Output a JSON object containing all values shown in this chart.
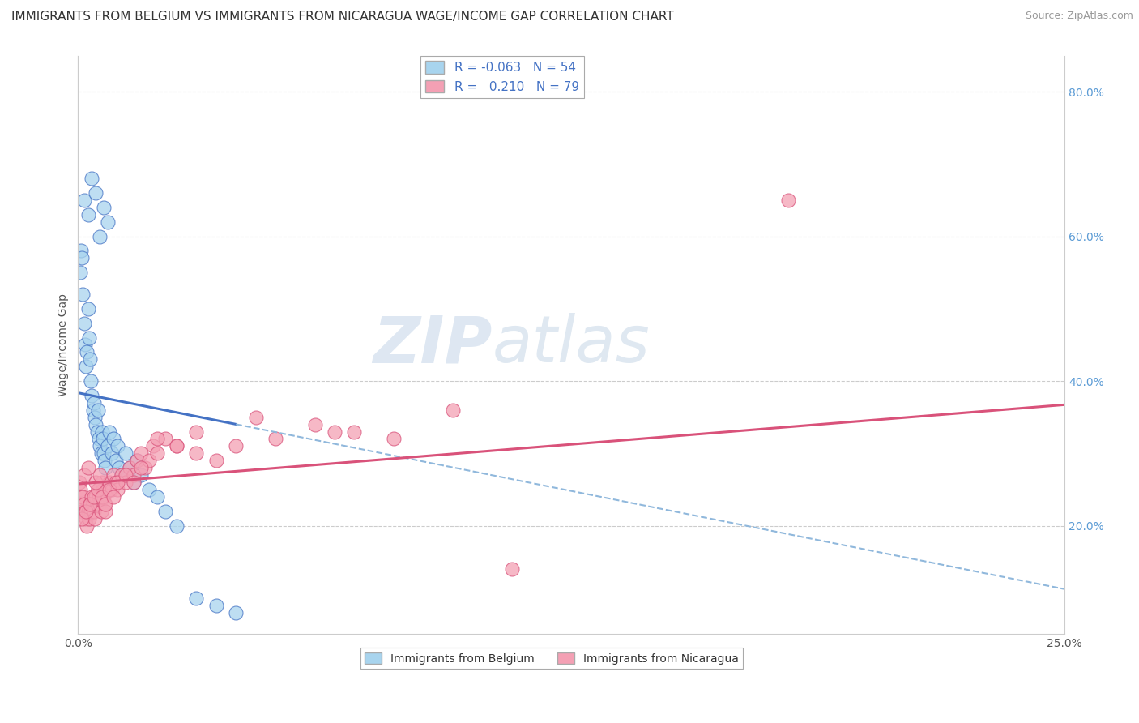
{
  "title": "IMMIGRANTS FROM BELGIUM VS IMMIGRANTS FROM NICARAGUA WAGE/INCOME GAP CORRELATION CHART",
  "source": "Source: ZipAtlas.com",
  "ylabel": "Wage/Income Gap",
  "xlim": [
    0.0,
    25.0
  ],
  "ylim": [
    5.0,
    85.0
  ],
  "yticks_right": [
    20.0,
    40.0,
    60.0,
    80.0
  ],
  "legend_belgium": {
    "R": "-0.063",
    "N": "54"
  },
  "legend_nicaragua": {
    "R": "0.210",
    "N": "79"
  },
  "color_belgium": "#A8D4EE",
  "color_nicaragua": "#F4A0B4",
  "color_belgium_line": "#4472C4",
  "color_nicaragua_line": "#D9527A",
  "color_dashed": "#90B8DC",
  "watermark_zip": "ZIP",
  "watermark_atlas": "atlas",
  "grid_color": "#CCCCCC",
  "background_color": "#FFFFFF",
  "title_fontsize": 11,
  "label_fontsize": 10,
  "tick_fontsize": 10,
  "belgium_x": [
    0.05,
    0.08,
    0.1,
    0.12,
    0.15,
    0.18,
    0.2,
    0.22,
    0.25,
    0.28,
    0.3,
    0.32,
    0.35,
    0.38,
    0.4,
    0.42,
    0.45,
    0.48,
    0.5,
    0.52,
    0.55,
    0.58,
    0.6,
    0.62,
    0.65,
    0.68,
    0.7,
    0.75,
    0.8,
    0.85,
    0.9,
    0.95,
    1.0,
    1.05,
    1.1,
    1.2,
    1.3,
    1.4,
    1.5,
    1.6,
    1.8,
    2.0,
    2.2,
    2.5,
    3.0,
    3.5,
    4.0,
    0.15,
    0.25,
    0.35,
    0.45,
    0.55,
    0.65,
    0.75
  ],
  "belgium_y": [
    55.0,
    58.0,
    57.0,
    52.0,
    48.0,
    45.0,
    42.0,
    44.0,
    50.0,
    46.0,
    43.0,
    40.0,
    38.0,
    36.0,
    37.0,
    35.0,
    34.0,
    33.0,
    36.0,
    32.0,
    31.0,
    30.0,
    33.0,
    32.0,
    30.0,
    29.0,
    28.0,
    31.0,
    33.0,
    30.0,
    32.0,
    29.0,
    31.0,
    28.0,
    27.0,
    30.0,
    28.0,
    26.0,
    29.0,
    27.0,
    25.0,
    24.0,
    22.0,
    20.0,
    10.0,
    9.0,
    8.0,
    65.0,
    63.0,
    68.0,
    66.0,
    60.0,
    64.0,
    62.0
  ],
  "nicaragua_x": [
    0.03,
    0.05,
    0.07,
    0.08,
    0.1,
    0.12,
    0.15,
    0.18,
    0.2,
    0.22,
    0.25,
    0.28,
    0.3,
    0.32,
    0.35,
    0.38,
    0.4,
    0.42,
    0.45,
    0.48,
    0.5,
    0.52,
    0.55,
    0.58,
    0.6,
    0.62,
    0.65,
    0.68,
    0.7,
    0.75,
    0.8,
    0.85,
    0.9,
    0.95,
    1.0,
    1.1,
    1.2,
    1.3,
    1.4,
    1.5,
    1.6,
    1.7,
    1.8,
    1.9,
    2.0,
    2.2,
    2.5,
    3.0,
    3.5,
    4.0,
    5.0,
    6.0,
    7.0,
    8.0,
    0.1,
    0.2,
    0.3,
    0.4,
    0.5,
    0.6,
    0.7,
    0.8,
    0.9,
    1.0,
    1.2,
    1.4,
    1.6,
    2.0,
    2.5,
    3.0,
    4.5,
    18.0,
    0.15,
    0.25,
    0.45,
    0.55,
    6.5,
    9.5,
    11.0
  ],
  "nicaragua_y": [
    26.0,
    25.0,
    24.0,
    23.0,
    22.0,
    24.0,
    23.0,
    22.0,
    21.0,
    20.0,
    22.0,
    21.0,
    23.0,
    22.0,
    24.0,
    23.0,
    22.0,
    21.0,
    24.0,
    23.0,
    25.0,
    24.0,
    23.0,
    22.0,
    26.0,
    25.0,
    24.0,
    23.0,
    22.0,
    25.0,
    26.0,
    25.0,
    27.0,
    26.0,
    25.0,
    27.0,
    26.0,
    28.0,
    27.0,
    29.0,
    30.0,
    28.0,
    29.0,
    31.0,
    30.0,
    32.0,
    31.0,
    30.0,
    29.0,
    31.0,
    32.0,
    34.0,
    33.0,
    32.0,
    21.0,
    22.0,
    23.0,
    24.0,
    25.0,
    24.0,
    23.0,
    25.0,
    24.0,
    26.0,
    27.0,
    26.0,
    28.0,
    32.0,
    31.0,
    33.0,
    35.0,
    65.0,
    27.0,
    28.0,
    26.0,
    27.0,
    33.0,
    36.0,
    14.0
  ]
}
